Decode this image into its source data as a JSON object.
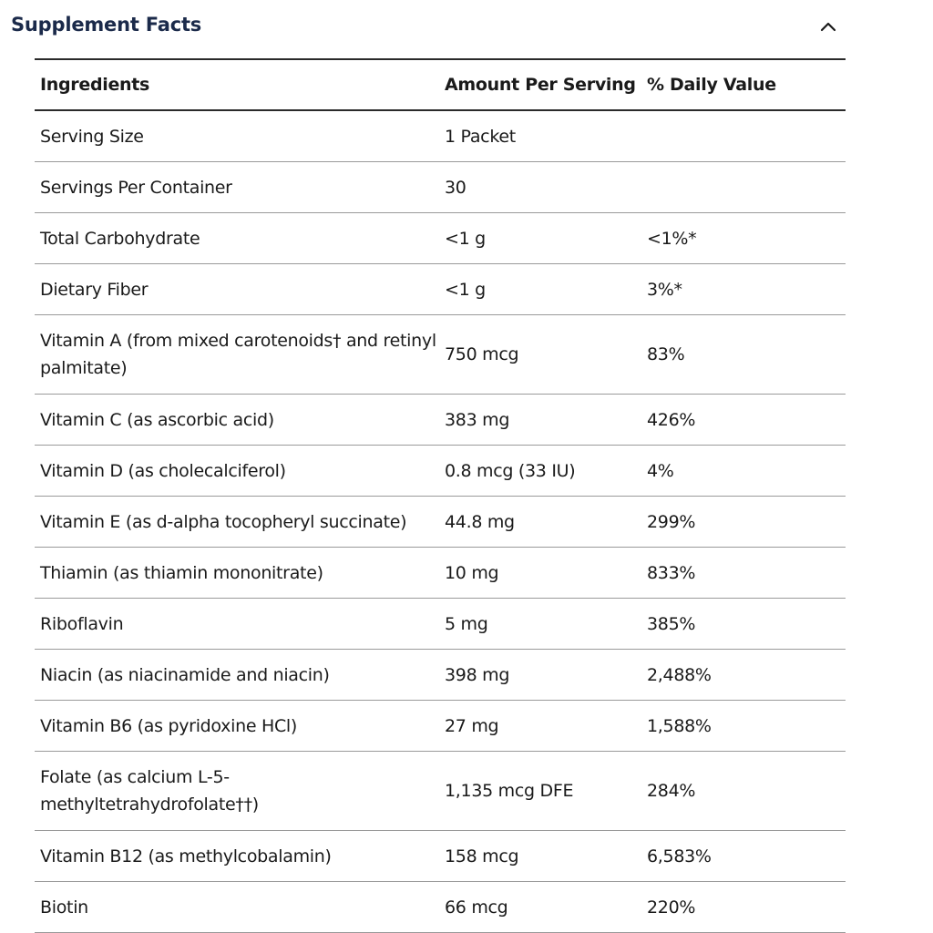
{
  "section": {
    "title": "Supplement Facts",
    "toggle_icon": "chevron-up-icon"
  },
  "table": {
    "headers": [
      "Ingredients",
      "Amount Per Serving",
      "% Daily Value"
    ],
    "rows": [
      {
        "ingredient": "Serving Size",
        "amount": "1 Packet",
        "dv": ""
      },
      {
        "ingredient": "Servings Per Container",
        "amount": "30",
        "dv": ""
      },
      {
        "ingredient": "Total Carbohydrate",
        "amount": "<1 g",
        "dv": "<1%*"
      },
      {
        "ingredient": "Dietary Fiber",
        "amount": "<1 g",
        "dv": "3%*"
      },
      {
        "ingredient": "Vitamin A (from mixed carotenoids† and retinyl palmitate)",
        "amount": "750 mcg",
        "dv": "83%"
      },
      {
        "ingredient": "Vitamin C (as ascorbic acid)",
        "amount": "383 mg",
        "dv": "426%"
      },
      {
        "ingredient": "Vitamin D (as cholecalciferol)",
        "amount": "0.8 mcg (33 IU)",
        "dv": "4%"
      },
      {
        "ingredient": "Vitamin E (as d-alpha tocopheryl succinate)",
        "amount": "44.8 mg",
        "dv": "299%"
      },
      {
        "ingredient": "Thiamin (as thiamin mononitrate)",
        "amount": "10 mg",
        "dv": "833%"
      },
      {
        "ingredient": "Riboflavin",
        "amount": "5 mg",
        "dv": "385%"
      },
      {
        "ingredient": "Niacin (as niacinamide and niacin)",
        "amount": "398 mg",
        "dv": "2,488%"
      },
      {
        "ingredient": "Vitamin B6 (as pyridoxine HCl)",
        "amount": "27 mg",
        "dv": "1,588%"
      },
      {
        "ingredient": "Folate (as calcium L-5-methyltetrahydrofolate††)",
        "amount": "1,135 mcg DFE",
        "dv": "284%"
      },
      {
        "ingredient": "Vitamin B12 (as methylcobalamin)",
        "amount": "158 mcg",
        "dv": "6,583%"
      },
      {
        "ingredient": "Biotin",
        "amount": "66 mcg",
        "dv": "220%"
      }
    ]
  },
  "colors": {
    "title": "#1b2a4a",
    "text": "#1a1a1a",
    "rule_heavy": "#2a2a2a",
    "rule_light": "#9a9a9a"
  }
}
